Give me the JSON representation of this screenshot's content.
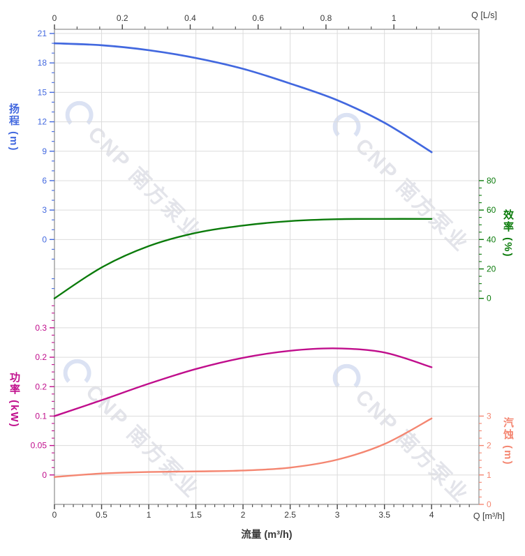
{
  "watermark": {
    "brand": "CNP 南方泵业"
  },
  "top_axis": {
    "unit_label": "Q [L/s]",
    "ticks": [
      "0",
      "0.2",
      "0.4",
      "0.6",
      "0.8",
      "1"
    ]
  },
  "bottom_axis": {
    "unit_label": "Q [m³/h]",
    "title": "流量 (m³/h)",
    "ticks": [
      "0",
      "0.5",
      "1",
      "1.5",
      "2",
      "2.5",
      "3",
      "3.5",
      "4"
    ]
  },
  "left_head_axis": {
    "title": "扬程 (m)",
    "color": "#4268df",
    "ticks": [
      "21",
      "18",
      "15",
      "12",
      "9",
      "6",
      "3",
      "0"
    ]
  },
  "right_eff_axis": {
    "title": "效率 (%)",
    "color": "#0b7b0b",
    "ticks": [
      "80",
      "60",
      "40",
      "20",
      "0"
    ]
  },
  "left_power_axis": {
    "title": "功率 (kW)",
    "color": "#c00e8c",
    "ticks": [
      "0.3",
      "0.2",
      "0.2",
      "0.1",
      "0.05",
      "0"
    ]
  },
  "right_npsh_axis": {
    "title": "汽蚀 (m)",
    "color": "#f48671",
    "ticks": [
      "3",
      "2",
      "1",
      "0"
    ]
  },
  "chart_data": {
    "type": "line",
    "title": "",
    "xlabel": "流量 (m³/h)",
    "x_top_unit": "L/s",
    "x": [
      0,
      0.5,
      1,
      1.5,
      2,
      2.5,
      3,
      3.5,
      4
    ],
    "grid": true,
    "series": [
      {
        "name": "扬程",
        "unit": "m",
        "color": "#4268df",
        "axis_range": [
          0,
          21
        ],
        "values": [
          20.0,
          19.8,
          19.3,
          18.5,
          17.4,
          15.9,
          14.2,
          11.9,
          8.9
        ]
      },
      {
        "name": "效率",
        "unit": "%",
        "color": "#0b7b0b",
        "axis_range": [
          0,
          80
        ],
        "values": [
          0,
          21,
          35.5,
          44.5,
          49.5,
          52.5,
          53.8,
          54,
          54
        ]
      },
      {
        "name": "功率",
        "unit": "kW",
        "color": "#c00e8c",
        "axis_range": [
          0,
          0.25
        ],
        "values": [
          0.1,
          0.127,
          0.155,
          0.18,
          0.199,
          0.211,
          0.215,
          0.208,
          0.183
        ]
      },
      {
        "name": "汽蚀",
        "unit": "m",
        "color": "#f48671",
        "axis_range": [
          0,
          3
        ],
        "values": [
          0.93,
          1.05,
          1.1,
          1.12,
          1.15,
          1.25,
          1.52,
          2.05,
          2.92
        ]
      }
    ]
  }
}
